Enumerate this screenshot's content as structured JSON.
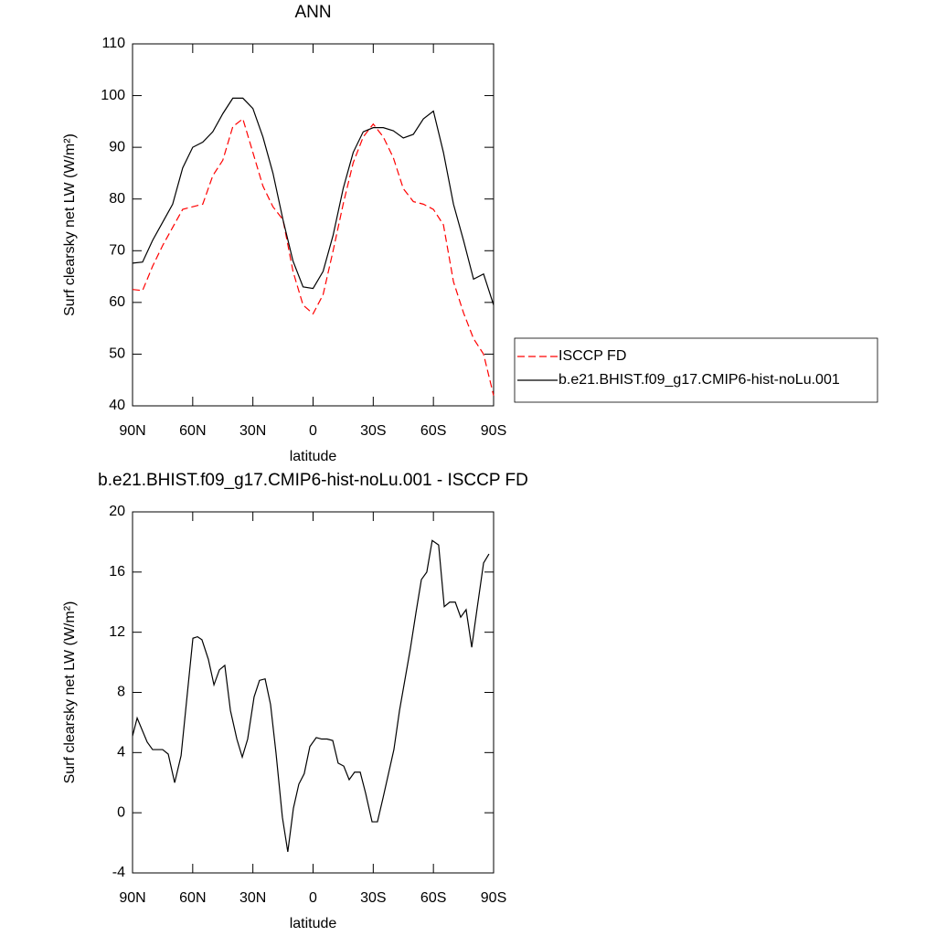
{
  "chart_data": [
    {
      "type": "line",
      "title": "ANN",
      "x_label": "latitude",
      "y_label": "Surf clearsky net LW (W/m²)",
      "x": [
        90,
        85,
        80,
        75,
        70,
        65,
        60,
        55,
        50,
        45,
        40,
        35,
        30,
        25,
        20,
        15,
        10,
        5,
        0,
        -5,
        -10,
        -15,
        -20,
        -25,
        -30,
        -35,
        -40,
        -45,
        -50,
        -55,
        -60,
        -65,
        -70,
        -75,
        -80,
        -85,
        -90
      ],
      "series": [
        {
          "name": "ISCCP FD",
          "color": "#ff0000",
          "style": "dashed",
          "values": [
            62.5,
            62.3,
            67,
            71,
            74.5,
            78,
            78.5,
            79,
            84.5,
            87.5,
            94,
            95.5,
            89,
            82.5,
            78.5,
            76,
            66,
            59.5,
            57.8,
            61.5,
            70,
            79,
            87,
            92,
            94.5,
            92,
            88,
            82,
            79.5,
            79,
            78,
            75,
            64,
            58,
            53,
            50,
            42
          ]
        },
        {
          "name": "b.e21.BHIST.f09_g17.CMIP6-hist-noLu.001",
          "color": "#000000",
          "style": "solid",
          "values": [
            67.6,
            67.8,
            72,
            75.5,
            79,
            86,
            90,
            91,
            93,
            96.5,
            99.5,
            99.5,
            97.5,
            92,
            85,
            76,
            68,
            63,
            62.7,
            66,
            73,
            82,
            89,
            93,
            93.8,
            93.8,
            93.2,
            91.8,
            92.5,
            95.5,
            97,
            89,
            79,
            72,
            64.5,
            65.5,
            59.5
          ]
        }
      ],
      "xlim": [
        90,
        -90
      ],
      "ylim": [
        40,
        110
      ],
      "xticks": [
        {
          "value": 90,
          "label": "90N"
        },
        {
          "value": 60,
          "label": "60N"
        },
        {
          "value": 30,
          "label": "30N"
        },
        0,
        {
          "value": -30,
          "label": "30S"
        },
        {
          "value": -60,
          "label": "60S"
        },
        {
          "value": -90,
          "label": "90S"
        }
      ],
      "yticks": [
        40,
        50,
        60,
        70,
        80,
        90,
        100,
        110
      ],
      "legend": "right"
    },
    {
      "type": "line",
      "title": "b.e21.BHIST.f09_g17.CMIP6-hist-noLu.001 - ISCCP FD",
      "x_label": "latitude",
      "y_label": "Surf clearsky net LW (W/m²)",
      "x": [
        90,
        87.7,
        82.7,
        80,
        75,
        72.2,
        69,
        65.8,
        59.9,
        57.6,
        55.4,
        52.2,
        49.4,
        46.7,
        44,
        41.2,
        38,
        35.3,
        32.6,
        29.4,
        26.7,
        23.9,
        21.2,
        18.5,
        15.3,
        12.6,
        9.8,
        7.1,
        4.4,
        1.6,
        -1.6,
        -4.3,
        -7,
        -9.8,
        -12.5,
        -15.3,
        -18,
        -20.7,
        -23.5,
        -26.2,
        -29.4,
        -32.1,
        -34.9,
        -40.3,
        -43.1,
        -48.5,
        -51.3,
        -54,
        -56.7,
        -59.4,
        -62.6,
        -65.4,
        -68.1,
        -70.9,
        -73.6,
        -76.3,
        -79.1,
        -81.8,
        -85,
        -87.7
      ],
      "color": "#000000",
      "values": [
        5.1,
        6.3,
        4.7,
        4.2,
        4.2,
        3.9,
        2.0,
        3.8,
        11.6,
        11.7,
        11.5,
        10.2,
        8.5,
        9.5,
        9.8,
        6.8,
        4.9,
        3.7,
        4.9,
        7.7,
        8.8,
        8.9,
        7.2,
        4.0,
        -0.3,
        -2.6,
        0.3,
        1.9,
        2.6,
        4.4,
        5.0,
        4.9,
        4.9,
        4.8,
        3.3,
        3.1,
        2.2,
        2.7,
        2.7,
        1.3,
        -0.6,
        -0.6,
        1.0,
        4.2,
        6.8,
        10.9,
        13.3,
        15.5,
        16.0,
        18.1,
        17.8,
        13.7,
        14.0,
        14.0,
        13.0,
        13.5,
        11.0,
        13.6,
        16.6,
        17.2
      ],
      "xlim": [
        90,
        -90
      ],
      "ylim": [
        -4,
        20
      ],
      "xticks": [
        {
          "value": 90,
          "label": "90N"
        },
        {
          "value": 60,
          "label": "60N"
        },
        {
          "value": 30,
          "label": "30N"
        },
        0,
        {
          "value": -30,
          "label": "30S"
        },
        {
          "value": -60,
          "label": "60S"
        },
        {
          "value": -90,
          "label": "90S"
        }
      ],
      "yticks": [
        -4,
        0,
        4,
        8,
        12,
        16,
        20
      ]
    }
  ]
}
